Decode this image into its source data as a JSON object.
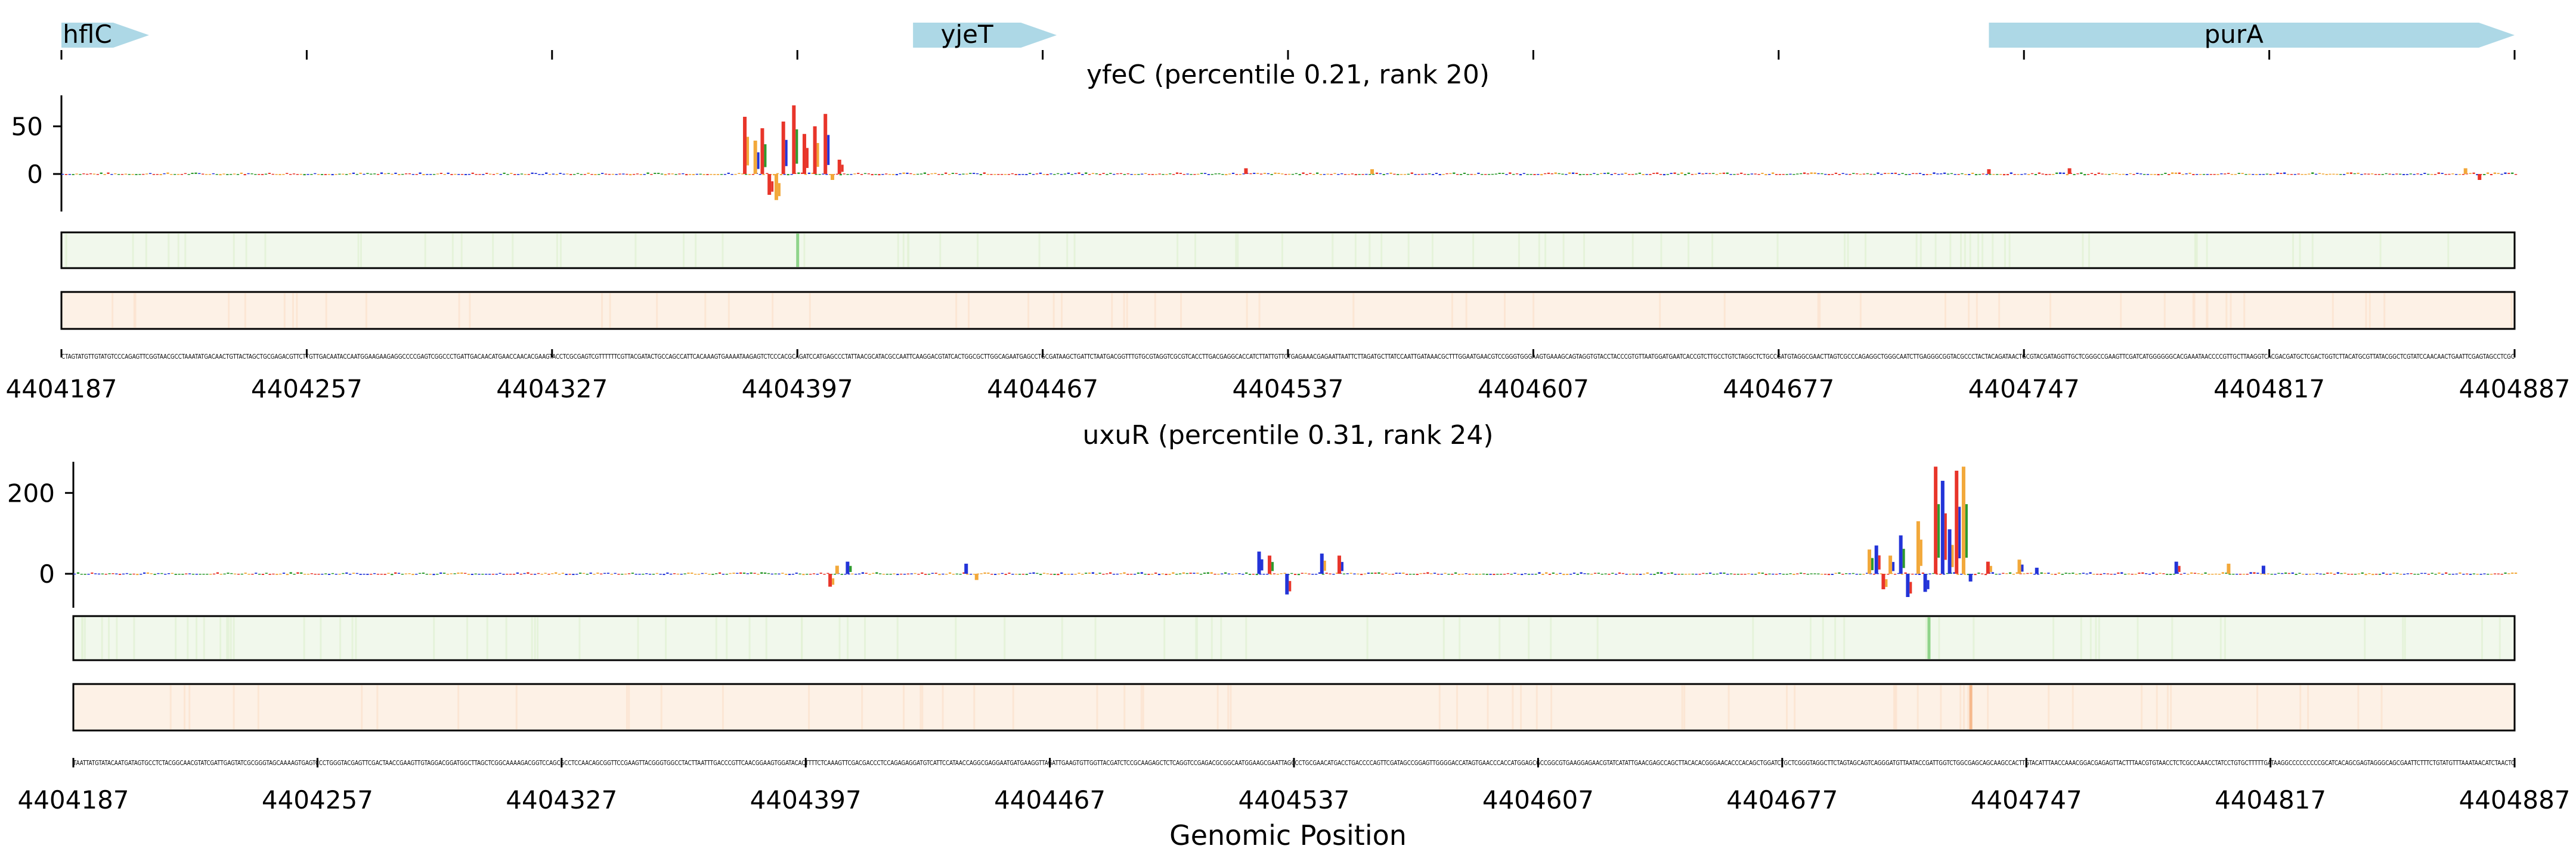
{
  "figure": {
    "xlabel": "Genomic Position"
  },
  "chart_data": {
    "type": "attribution-track",
    "genes": [
      {
        "name": "hflC",
        "start": 4404187,
        "end": 4404212
      },
      {
        "name": "yjeT",
        "start": 4404430,
        "end": 4404471
      },
      {
        "name": "purA",
        "start": 4404737,
        "end": 4404887
      }
    ],
    "x_ticks": [
      "4404187",
      "4404257",
      "4404327",
      "4404397",
      "4404467",
      "4404537",
      "4404607",
      "4404677",
      "4404747",
      "4404817",
      "4404887"
    ],
    "x_range": [
      4404187,
      4404887
    ],
    "panels": [
      {
        "title": "yfeC (percentile 0.21, rank 20)",
        "ylim": [
          -60,
          75
        ],
        "y_ticks": [
          {
            "value": 50,
            "label": "50"
          },
          {
            "value": 0,
            "label": "0"
          }
        ],
        "peaks": [
          {
            "x": 4404382,
            "y": 60
          },
          {
            "x": 4404385,
            "y": 35
          },
          {
            "x": 4404387,
            "y": 48
          },
          {
            "x": 4404389,
            "y": -28
          },
          {
            "x": 4404391,
            "y": -35
          },
          {
            "x": 4404393,
            "y": 55
          },
          {
            "x": 4404396,
            "y": 72
          },
          {
            "x": 4404399,
            "y": 42
          },
          {
            "x": 4404402,
            "y": 50
          },
          {
            "x": 4404405,
            "y": 63
          },
          {
            "x": 4404407,
            "y": -8
          },
          {
            "x": 4404409,
            "y": 15
          },
          {
            "x": 4404525,
            "y": 6
          },
          {
            "x": 4404561,
            "y": 5
          },
          {
            "x": 4404737,
            "y": 5
          },
          {
            "x": 4404760,
            "y": 6
          },
          {
            "x": 4404873,
            "y": 6
          },
          {
            "x": 4404877,
            "y": -8
          }
        ],
        "heat_green_peak": 4404397,
        "heat_orange_peak": null
      },
      {
        "title": "uxuR (percentile 0.31, rank 24)",
        "ylim": [
          -60,
          280
        ],
        "y_ticks": [
          {
            "value": 200,
            "label": "200"
          },
          {
            "value": 0,
            "label": "0"
          }
        ],
        "peaks": [
          {
            "x": 4404404,
            "y": -25
          },
          {
            "x": 4404406,
            "y": 20
          },
          {
            "x": 4404409,
            "y": 30
          },
          {
            "x": 4404443,
            "y": 25
          },
          {
            "x": 4404446,
            "y": -12
          },
          {
            "x": 4404527,
            "y": 55
          },
          {
            "x": 4404530,
            "y": 45
          },
          {
            "x": 4404535,
            "y": -40
          },
          {
            "x": 4404545,
            "y": 50
          },
          {
            "x": 4404550,
            "y": 45
          },
          {
            "x": 4404702,
            "y": 60
          },
          {
            "x": 4404704,
            "y": 70
          },
          {
            "x": 4404706,
            "y": -30
          },
          {
            "x": 4404708,
            "y": 45
          },
          {
            "x": 4404711,
            "y": 95
          },
          {
            "x": 4404713,
            "y": -45
          },
          {
            "x": 4404716,
            "y": 130
          },
          {
            "x": 4404718,
            "y": -35
          },
          {
            "x": 4404721,
            "y": 265
          },
          {
            "x": 4404723,
            "y": 230
          },
          {
            "x": 4404725,
            "y": 110
          },
          {
            "x": 4404727,
            "y": 255
          },
          {
            "x": 4404729,
            "y": 265
          },
          {
            "x": 4404731,
            "y": -15
          },
          {
            "x": 4404736,
            "y": 30
          },
          {
            "x": 4404745,
            "y": 35
          },
          {
            "x": 4404750,
            "y": 15
          },
          {
            "x": 4404790,
            "y": 30
          },
          {
            "x": 4404805,
            "y": 25
          },
          {
            "x": 4404815,
            "y": 20
          }
        ],
        "heat_green_peak": 4404719,
        "heat_orange_peak": 4404731
      }
    ]
  }
}
